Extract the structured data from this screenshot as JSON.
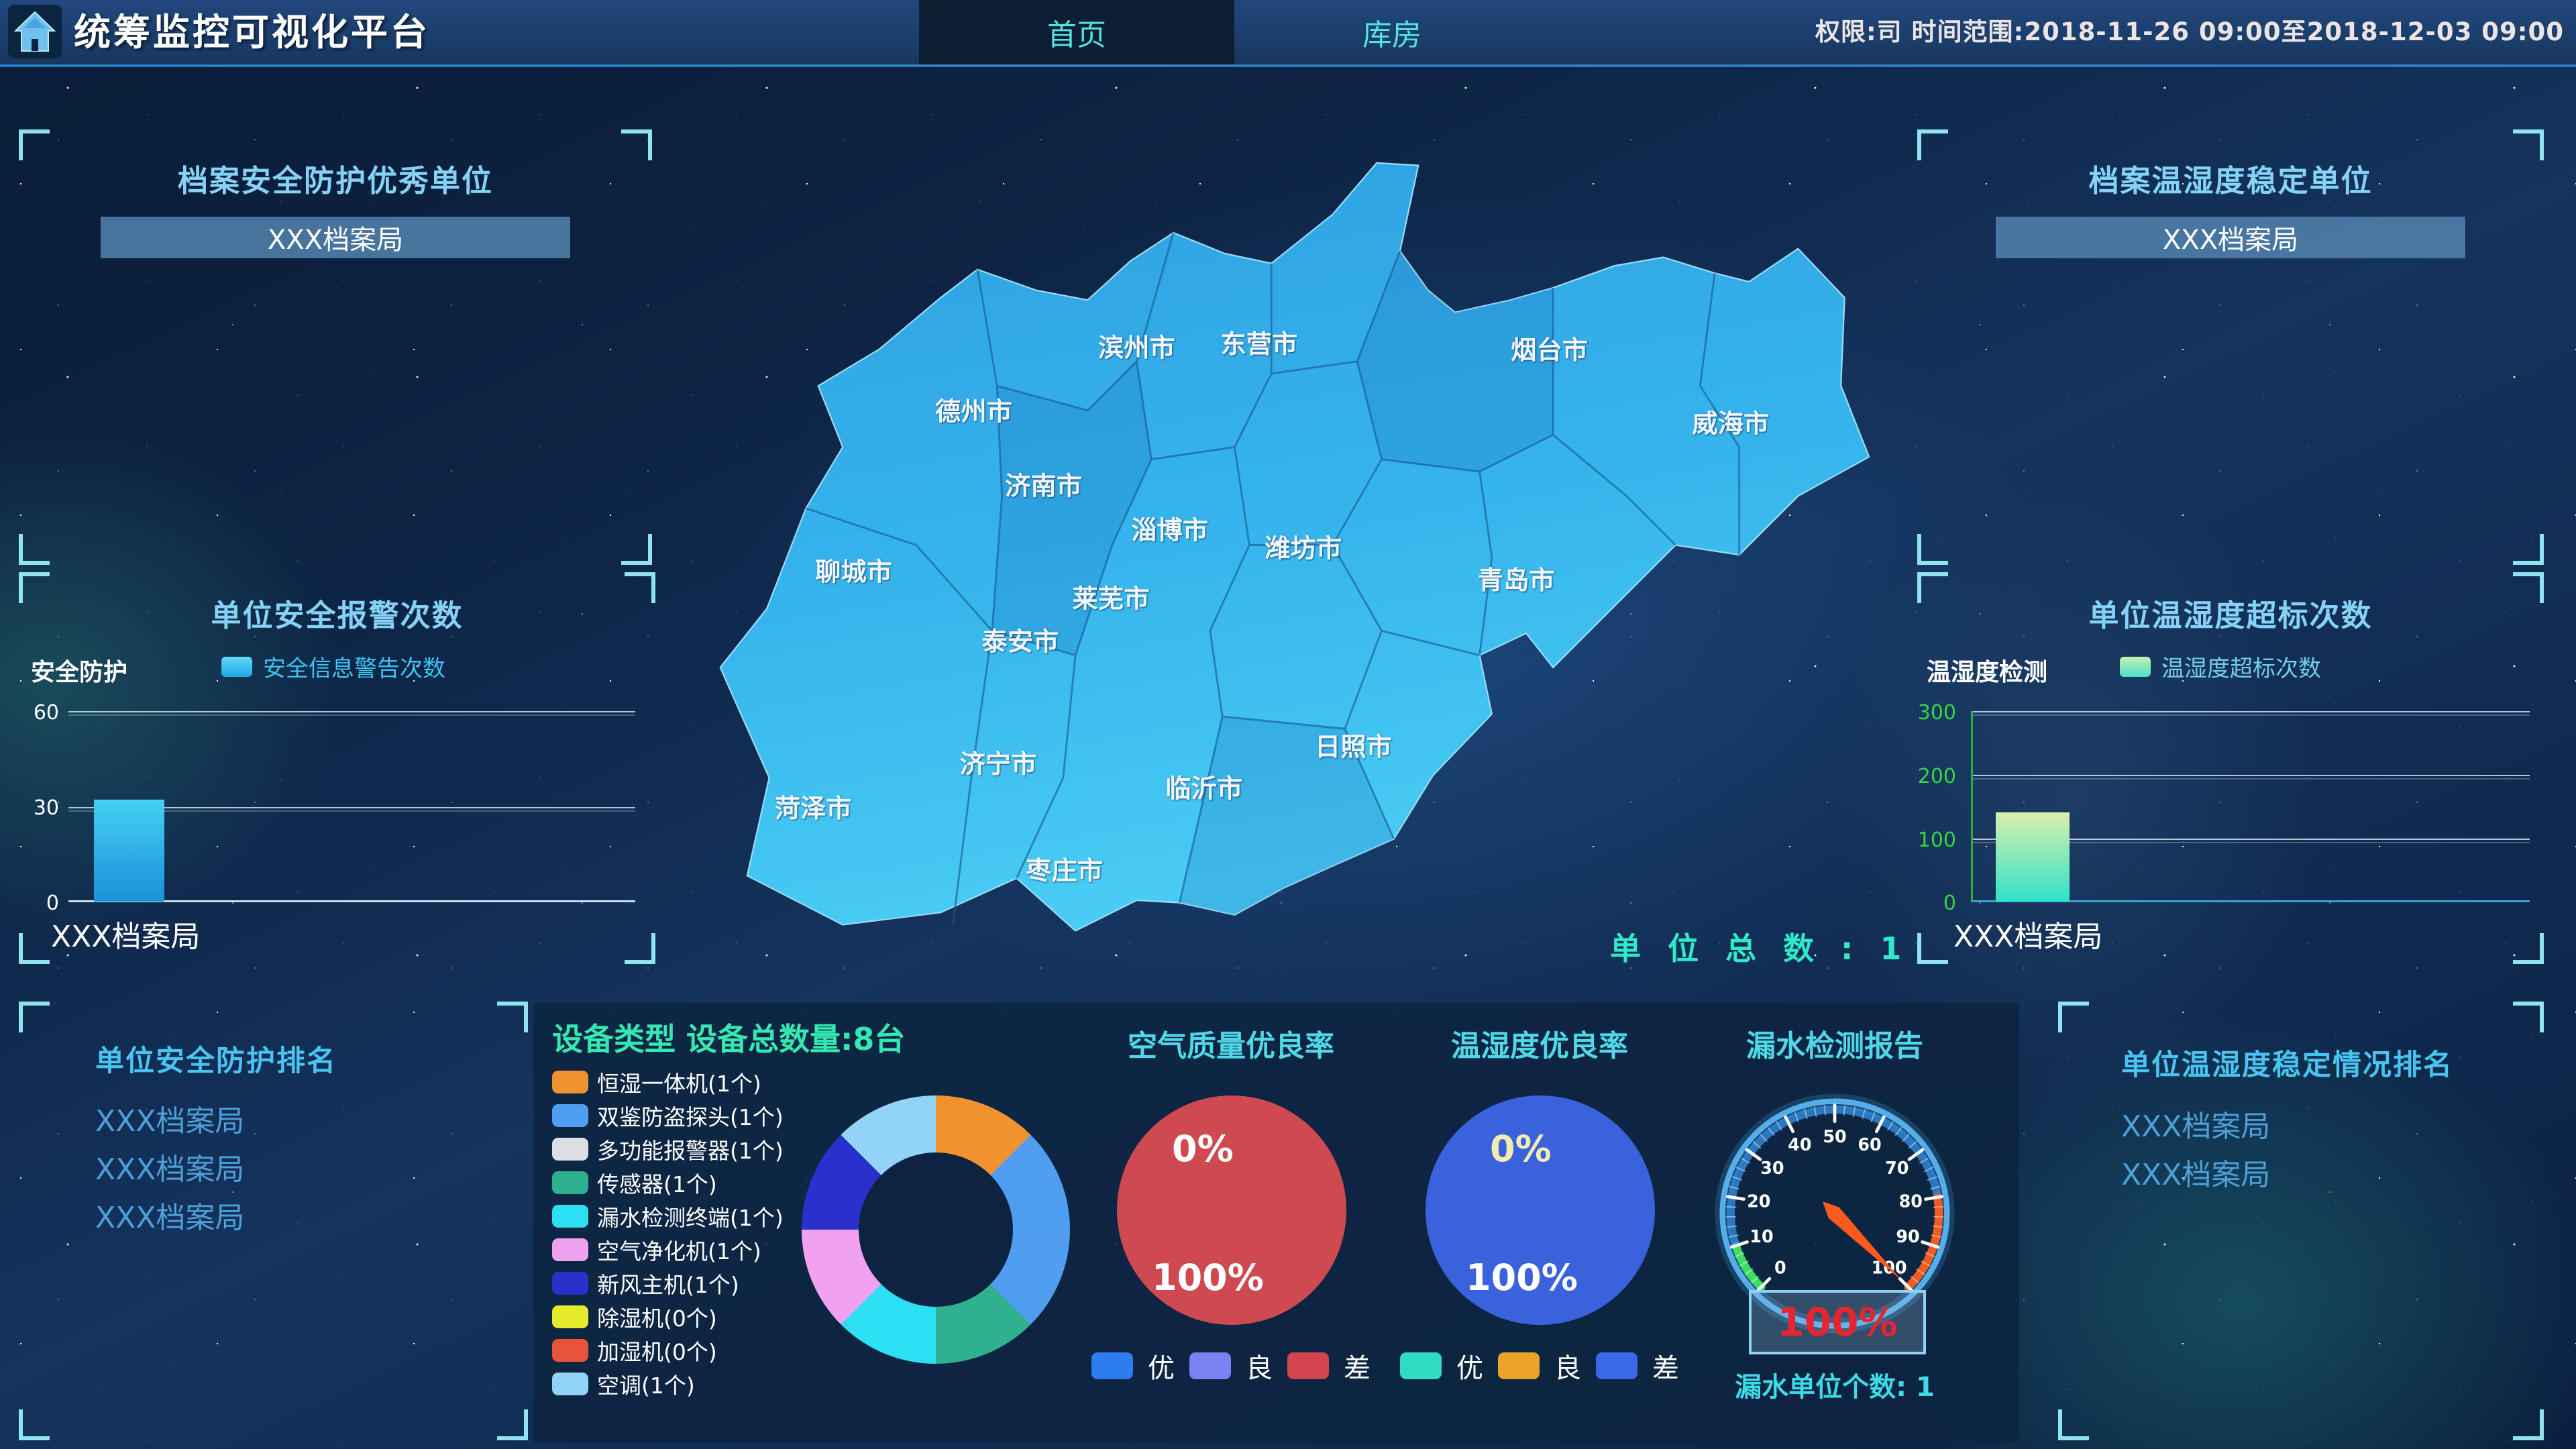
{
  "header": {
    "title": "统筹监控可视化平台",
    "tabs": [
      {
        "label": "首页",
        "active": true
      },
      {
        "label": "库房",
        "active": false
      }
    ],
    "info": "权限:司 时间范围:2018-11-26 09:00至2018-12-03 09:00"
  },
  "panels": {
    "security_excellent": {
      "title": "档案安全防护优秀单位",
      "items": [
        "XXX档案局"
      ]
    },
    "security_alarm": {
      "title": "单位安全报警次数",
      "axis_label": "安全防护",
      "legend": "安全信息警告次数",
      "legend_color": "#2fc6f2",
      "yticks": [
        "60",
        "30",
        "0"
      ],
      "xlabel": "XXX档案局"
    },
    "security_rank": {
      "title": "单位安全防护排名",
      "items": [
        "XXX档案局",
        "XXX档案局",
        "XXX档案局"
      ]
    },
    "humidity_stable": {
      "title": "档案温湿度稳定单位",
      "items": [
        "XXX档案局"
      ]
    },
    "humidity_exceed": {
      "title": "单位温湿度超标次数",
      "axis_label": "温湿度检测",
      "legend": "温湿度超标次数",
      "legend_color": "#9ce8a8",
      "yticks": [
        "300",
        "200",
        "100",
        "0"
      ],
      "xlabel": "XXX档案局"
    },
    "humidity_rank": {
      "title": "单位温湿度稳定情况排名",
      "items": [
        "XXX档案局",
        "XXX档案局"
      ]
    }
  },
  "map": {
    "total_label": "单 位 总 数 : 1",
    "cities": [
      "德州市",
      "滨州市",
      "东营市",
      "烟台市",
      "威海市",
      "济南市",
      "淄博市",
      "潍坊市",
      "聊城市",
      "莱芜市",
      "泰安市",
      "青岛市",
      "济宁市",
      "日照市",
      "临沂市",
      "菏泽市",
      "枣庄市"
    ]
  },
  "devices": {
    "title": "设备类型 设备总数量:8台",
    "legend": [
      {
        "label": "恒湿一体机(1个)",
        "color": "#f0922e"
      },
      {
        "label": "双鉴防盗探头(1个)",
        "color": "#4f9ef2"
      },
      {
        "label": "多功能报警器(1个)",
        "color": "#dcdfe3"
      },
      {
        "label": "传感器(1个)",
        "color": "#2fb091"
      },
      {
        "label": "漏水检测终端(1个)",
        "color": "#2ddff2"
      },
      {
        "label": "空气净化机(1个)",
        "color": "#f0a2f0"
      },
      {
        "label": "新风主机(1个)",
        "color": "#2a30cc"
      },
      {
        "label": "除湿机(0个)",
        "color": "#e6ea2c"
      },
      {
        "label": "加湿机(0个)",
        "color": "#e8543a"
      },
      {
        "label": "空调(1个)",
        "color": "#92d4f8"
      }
    ],
    "donut_colors": [
      "#f0922e",
      "#4f9ef2",
      "#519df0",
      "#2fb091",
      "#2ddff2",
      "#f0a2f0",
      "#2a30cc",
      "#92d4f8"
    ]
  },
  "air_quality": {
    "title": "空气质量优良率",
    "top_label": "0%",
    "bottom_label": "100%",
    "color": "#cf4950",
    "legend": [
      {
        "label": "优",
        "color": "#2e7df0"
      },
      {
        "label": "良",
        "color": "#7d82f2"
      },
      {
        "label": "差",
        "color": "#d2444e"
      }
    ]
  },
  "temp_humidity": {
    "title": "温湿度优良率",
    "top_label": "0%",
    "bottom_label": "100%",
    "color": "#3a62dc",
    "legend": [
      {
        "label": "优",
        "color": "#30dcc4"
      },
      {
        "label": "良",
        "color": "#eca32a"
      },
      {
        "label": "差",
        "color": "#3a68e8"
      }
    ]
  },
  "leak": {
    "title": "漏水检测报告",
    "value": "100%",
    "count_label": "漏水单位个数: 1",
    "ticks": [
      "0",
      "10",
      "20",
      "30",
      "40",
      "50",
      "60",
      "70",
      "80",
      "90",
      "100"
    ]
  },
  "chart_data": [
    {
      "type": "bar",
      "title": "单位安全报警次数",
      "categories": [
        "XXX档案局"
      ],
      "values": [
        32
      ],
      "ylabel": "安全防护",
      "legend": [
        "安全信息警告次数"
      ],
      "ylim": [
        0,
        60
      ],
      "yticks": [
        0,
        30,
        60
      ],
      "grid": true
    },
    {
      "type": "bar",
      "title": "单位温湿度超标次数",
      "categories": [
        "XXX档案局"
      ],
      "values": [
        140
      ],
      "ylabel": "温湿度检测",
      "legend": [
        "温湿度超标次数"
      ],
      "ylim": [
        0,
        300
      ],
      "yticks": [
        0,
        100,
        200,
        300
      ],
      "grid": true
    },
    {
      "type": "pie",
      "title": "设备类型 设备总数量:8台",
      "labels": [
        "恒湿一体机",
        "双鉴防盗探头",
        "多功能报警器",
        "传感器",
        "漏水检测终端",
        "空气净化机",
        "新风主机",
        "除湿机",
        "加湿机",
        "空调"
      ],
      "values": [
        1,
        1,
        1,
        1,
        1,
        1,
        1,
        0,
        0,
        1
      ],
      "total": 8,
      "shape": "donut"
    },
    {
      "type": "pie",
      "title": "空气质量优良率",
      "labels": [
        "优",
        "良",
        "差"
      ],
      "values": [
        0,
        0,
        100
      ]
    },
    {
      "type": "pie",
      "title": "温湿度优良率",
      "labels": [
        "优",
        "良",
        "差"
      ],
      "values": [
        0,
        0,
        100
      ]
    },
    {
      "type": "gauge",
      "title": "漏水检测报告",
      "value": 100,
      "min": 0,
      "max": 100,
      "unit": "%",
      "leak_units": 1
    },
    {
      "type": "map",
      "title": "山东省地图",
      "total_units": 1
    }
  ]
}
